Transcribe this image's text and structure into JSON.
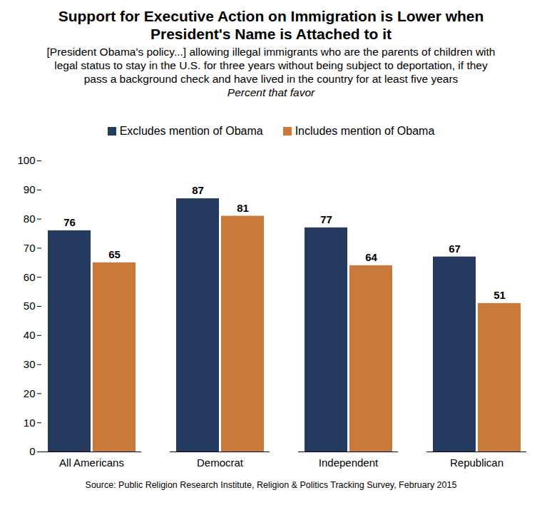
{
  "chart_data": {
    "type": "bar",
    "title": "Support for Executive Action on Immigration is Lower when President's Name is Attached to it",
    "subtitle": [
      "[President Obama's policy...] allowing illegal immigrants who are the parents of children with legal status to stay in the U.S. for three years without being subject to deportation, if they pass a background check and have lived in the country for at least five years",
      "Percent that favor"
    ],
    "source": "Source: Public Religion Research Institute, Religion & Politics Tracking Survey, February 2015",
    "categories": [
      "All Americans",
      "Democrat",
      "Independent",
      "Republican"
    ],
    "series": [
      {
        "name": "Excludes mention of Obama",
        "color": "#243a5e",
        "values": [
          76,
          87,
          77,
          67
        ]
      },
      {
        "name": "Includes mention of Obama",
        "color": "#c97a3a",
        "values": [
          65,
          81,
          64,
          51
        ]
      }
    ],
    "ylim": [
      0,
      100
    ],
    "yticks": [
      0,
      10,
      20,
      30,
      40,
      50,
      60,
      70,
      80,
      90,
      100
    ],
    "grid": false,
    "legend": "top",
    "data_labels": true
  }
}
